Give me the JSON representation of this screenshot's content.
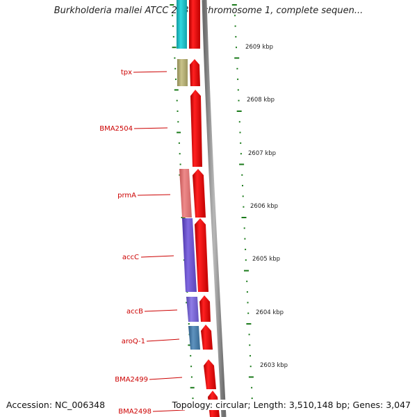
{
  "title": "Burkholderia mallei ATCC 23344 chromosome 1, complete sequen...",
  "footer": {
    "accession": "Accession: NC_006348",
    "summary": "Topology: circular; Length: 3,510,148 bp; Genes: 3,047"
  },
  "gene_labels": [
    "tpx",
    "BMA2504",
    "prmA",
    "accC",
    "accB",
    "aroQ-1",
    "BMA2499",
    "BMA2498"
  ],
  "kbp_labels": [
    "2609 kbp",
    "2608 kbp",
    "2607 kbp",
    "2606 kbp",
    "2605 kbp",
    "2604 kbp",
    "2603 kbp"
  ],
  "colors": {
    "cds": "#ff0000",
    "label": "#cc0000",
    "tick": "#1a7a1a",
    "backbone": "#8a8a8a",
    "tpx_gene": "#b8b27a",
    "prmA_gene": "#e87878",
    "accC_gene": "#7058d0",
    "accB_gene": "#7e6ad8",
    "aroQ_gene": "#4a7ea8",
    "top_gene": "#22c8d0"
  }
}
